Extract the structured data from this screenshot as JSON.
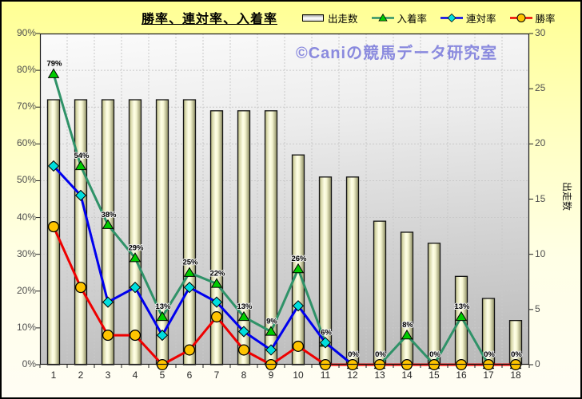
{
  "title": {
    "text": "勝率、連対率、入着率"
  },
  "watermark": {
    "text": "©Caniの競馬データ研究室"
  },
  "colors": {
    "background_top": "#ffff94",
    "background_bottom": "#fffdf4",
    "plot_top": "#fbfbfb",
    "plot_bottom": "#b9b9b9",
    "watermark": "#8a8ade",
    "gridline": "#c9c9c9",
    "bar_edge": "#96966a",
    "bar_center": "#ffffe8",
    "placing_line": "#2f9268",
    "placing_marker": "#00cc00",
    "quinella_line": "#0000ee",
    "quinella_marker": "#00dede",
    "win_line": "#ee0000",
    "win_marker": "#fec400"
  },
  "legend": {
    "items": [
      {
        "key": "starts",
        "label": "出走数",
        "swatch": "bar"
      },
      {
        "key": "placing-rate",
        "label": "入着率",
        "swatch": "triangle"
      },
      {
        "key": "quinella-rate",
        "label": "連対率",
        "swatch": "diamond"
      },
      {
        "key": "win-rate",
        "label": "勝率",
        "swatch": "circle"
      }
    ]
  },
  "chart_data": {
    "type": "combo-bar-line",
    "title": "勝率、連対率、入着率",
    "categories": [
      "1",
      "2",
      "3",
      "4",
      "5",
      "6",
      "7",
      "8",
      "9",
      "10",
      "11",
      "12",
      "13",
      "14",
      "15",
      "16",
      "17",
      "18"
    ],
    "bar_series": {
      "name": "出走数",
      "key": "starts",
      "axis": "right",
      "values": [
        24,
        24,
        24,
        24,
        24,
        24,
        23,
        23,
        23,
        19,
        17,
        17,
        13,
        12,
        11,
        8,
        6,
        4
      ]
    },
    "line_series": [
      {
        "name": "入着率",
        "key": "placing-rate",
        "marker": "triangle",
        "line_color": "#2f9268",
        "marker_color": "#00cc00",
        "values": [
          79,
          54,
          38,
          29,
          13,
          25,
          22,
          13,
          9,
          26,
          6,
          0,
          0,
          8,
          0,
          13,
          0,
          0
        ],
        "labels": [
          "79%",
          "54%",
          "38%",
          "29%",
          "13%",
          "25%",
          "22%",
          "13%",
          "9%",
          "26%",
          "6%",
          "0%",
          "0%",
          "8%",
          "0%",
          "13%",
          "0%",
          "0%"
        ]
      },
      {
        "name": "連対率",
        "key": "quinella-rate",
        "marker": "diamond",
        "line_color": "#0000ee",
        "marker_color": "#00dede",
        "values": [
          54,
          46,
          17,
          21,
          8,
          21,
          17,
          9,
          4,
          16,
          6,
          0,
          0,
          0,
          0,
          0,
          0,
          0
        ],
        "labels": null
      },
      {
        "name": "勝率",
        "key": "win-rate",
        "marker": "circle",
        "line_color": "#ee0000",
        "marker_color": "#fec400",
        "values": [
          37.5,
          21,
          8,
          8,
          0,
          4,
          13,
          4,
          0,
          5,
          0,
          0,
          0,
          0,
          0,
          0,
          0,
          0
        ],
        "labels": null
      }
    ],
    "left_axis": {
      "min": 0,
      "max": 90,
      "step": 10,
      "suffix": "%",
      "labels": [
        "0%",
        "10%",
        "20%",
        "30%",
        "40%",
        "50%",
        "60%",
        "70%",
        "80%",
        "90%"
      ]
    },
    "right_axis": {
      "min": 0,
      "max": 30,
      "step": 5,
      "title": "出走数",
      "labels": [
        "0",
        "5",
        "10",
        "15",
        "20",
        "25",
        "30"
      ]
    },
    "x_axis": {
      "labels": [
        "1",
        "2",
        "3",
        "4",
        "5",
        "6",
        "7",
        "8",
        "9",
        "10",
        "11",
        "12",
        "13",
        "14",
        "15",
        "16",
        "17",
        "18"
      ]
    },
    "grid": {
      "horizontal_every_percent": 10,
      "vertical_per_category": true,
      "style": "dashed"
    },
    "legend_position": "top-right"
  }
}
